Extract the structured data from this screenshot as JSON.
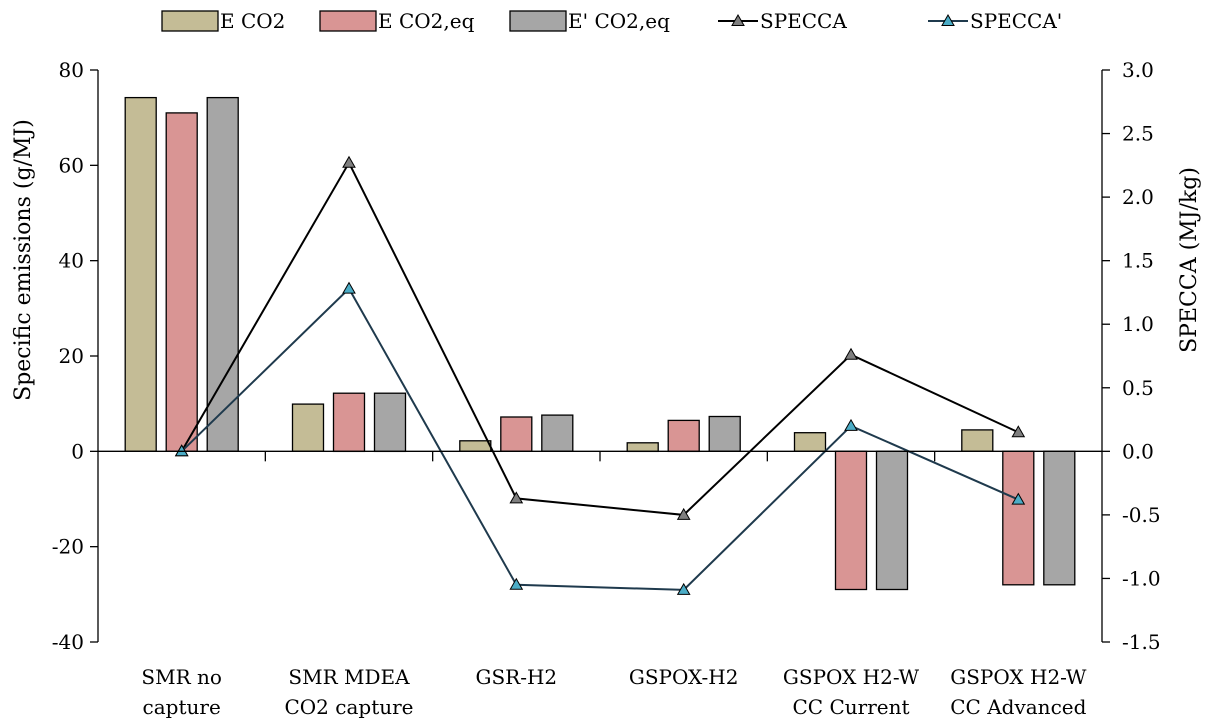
{
  "chart_data": {
    "type": "bar",
    "categories": [
      [
        "SMR no",
        "capture"
      ],
      [
        "SMR MDEA",
        "CO2 capture"
      ],
      [
        "GSR-H2"
      ],
      [
        "GSPOX-H2"
      ],
      [
        "GSPOX H2-W",
        "CC Current"
      ],
      [
        "GSPOX H2-W",
        "CC Advanced"
      ]
    ],
    "series": [
      {
        "name": "E CO2",
        "kind": "bar",
        "axis": "left",
        "color": "#c4bc96",
        "values": [
          74.2,
          9.9,
          2.2,
          1.8,
          3.9,
          4.5
        ]
      },
      {
        "name": "E CO2,eq",
        "kind": "bar",
        "axis": "left",
        "color": "#d99594",
        "values": [
          71.0,
          12.2,
          7.2,
          6.5,
          -29.0,
          -28.0
        ]
      },
      {
        "name": "E' CO2,eq",
        "kind": "bar",
        "axis": "left",
        "color": "#a6a6a6",
        "values": [
          74.2,
          12.2,
          7.6,
          7.3,
          -29.0,
          -28.0
        ]
      },
      {
        "name": "SPECCA",
        "kind": "line",
        "axis": "right",
        "color": "#000000",
        "marker_color": "#7f7f7f",
        "values": [
          0.0,
          2.27,
          -0.37,
          -0.5,
          0.76,
          0.15
        ]
      },
      {
        "name": "SPECCA'",
        "kind": "line",
        "axis": "right",
        "color": "#1f3a4d",
        "marker_color": "#4bacc6",
        "values": [
          0.0,
          1.28,
          -1.05,
          -1.09,
          0.2,
          -0.38
        ]
      }
    ],
    "ylabel": "Specific emissions (g/MJ)",
    "y2label": "SPECCA (MJ/kg)",
    "ylim": [
      -40,
      80
    ],
    "y2lim": [
      -1.5,
      3.0
    ],
    "yticks": [
      -40,
      -20,
      0,
      20,
      40,
      60,
      80
    ],
    "y2ticks": [
      "-1.5",
      "-1.0",
      "-0.5",
      "0.0",
      "0.5",
      "1.0",
      "1.5",
      "2.0",
      "2.5",
      "3.0"
    ],
    "grid": false,
    "legend_position": "top"
  }
}
